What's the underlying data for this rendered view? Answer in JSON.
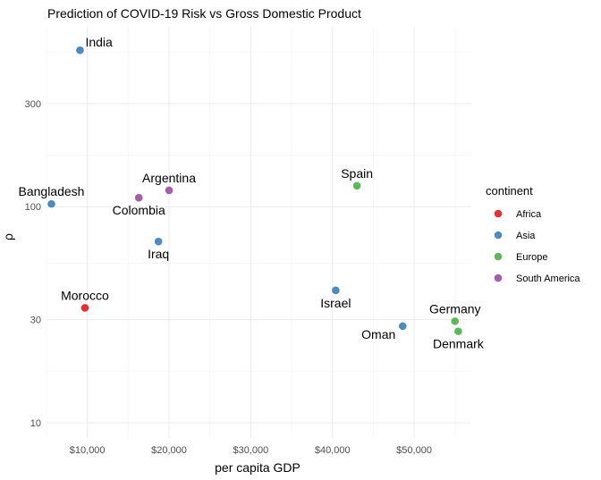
{
  "chart_data": {
    "type": "scatter",
    "title": "Prediction of COVID-19 Risk vs Gross Domestic Product",
    "xlabel": "per capita GDP",
    "ylabel": "ρ",
    "x_scale": "linear",
    "y_scale": "log10",
    "xlim": [
      5000,
      57000
    ],
    "ylim": [
      8.5,
      680
    ],
    "x_ticks": [
      10000,
      20000,
      30000,
      40000,
      50000
    ],
    "x_tick_labels": [
      "$10,000",
      "$20,000",
      "$30,000",
      "$40,000",
      "$50,000"
    ],
    "y_ticks": [
      10,
      30,
      100,
      300
    ],
    "y_tick_labels": [
      "10",
      "30",
      "100",
      "300"
    ],
    "grid": true,
    "legend": {
      "title": "continent",
      "placement": "right",
      "entries": [
        {
          "name": "Africa",
          "color": "#e41a1c"
        },
        {
          "name": "Asia",
          "color": "#377eb8"
        },
        {
          "name": "Europe",
          "color": "#4daf4a"
        },
        {
          "name": "South America",
          "color": "#984ea3"
        }
      ]
    },
    "points": [
      {
        "label": "India",
        "continent": "Asia",
        "x": 9100,
        "y": 530,
        "label_pos": "right"
      },
      {
        "label": "Bangladesh",
        "continent": "Asia",
        "x": 5600,
        "y": 103,
        "label_pos": "above"
      },
      {
        "label": "Colombia",
        "continent": "South America",
        "x": 16300,
        "y": 110,
        "label_pos": "below"
      },
      {
        "label": "Argentina",
        "continent": "South America",
        "x": 20000,
        "y": 119,
        "label_pos": "above"
      },
      {
        "label": "Iraq",
        "continent": "Asia",
        "x": 18700,
        "y": 69,
        "label_pos": "below"
      },
      {
        "label": "Morocco",
        "continent": "Africa",
        "x": 9700,
        "y": 34,
        "label_pos": "above"
      },
      {
        "label": "Spain",
        "continent": "Europe",
        "x": 43000,
        "y": 125,
        "label_pos": "above"
      },
      {
        "label": "Israel",
        "continent": "Asia",
        "x": 40400,
        "y": 41,
        "label_pos": "below"
      },
      {
        "label": "Oman",
        "continent": "Asia",
        "x": 48600,
        "y": 28,
        "label_pos": "below-left"
      },
      {
        "label": "Germany",
        "continent": "Europe",
        "x": 55000,
        "y": 29.5,
        "label_pos": "above"
      },
      {
        "label": "Denmark",
        "continent": "Europe",
        "x": 55400,
        "y": 26.5,
        "label_pos": "below"
      }
    ]
  }
}
